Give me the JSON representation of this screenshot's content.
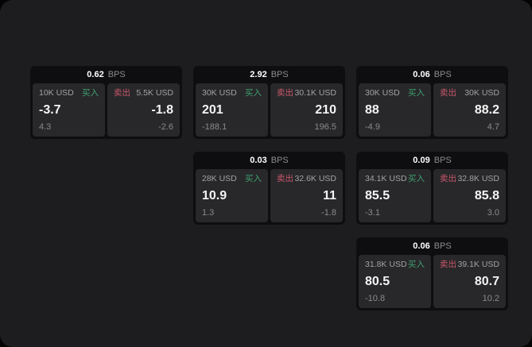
{
  "labels": {
    "bps_unit": "BPS",
    "buy": "买入",
    "sell": "卖出"
  },
  "colors": {
    "buy_green": "#3EA06F",
    "sell_red": "#C9566A",
    "page_bg": "#1D1D1F",
    "card_bg": "#0E0E10",
    "panel_bg": "#28282A"
  },
  "cards": [
    {
      "row": 1,
      "col": 1,
      "bps_value": "0.62",
      "buy": {
        "notional": "10K USD",
        "value": "-3.7",
        "secondary": "4.3"
      },
      "sell": {
        "notional": "5.5K USD",
        "value": "-1.8",
        "secondary": "-2.6"
      }
    },
    {
      "row": 1,
      "col": 2,
      "bps_value": "2.92",
      "buy": {
        "notional": "30K USD",
        "value": "201",
        "secondary": "-188.1"
      },
      "sell": {
        "notional": "30.1K USD",
        "value": "210",
        "secondary": "196.5"
      }
    },
    {
      "row": 1,
      "col": 3,
      "bps_value": "0.06",
      "buy": {
        "notional": "30K USD",
        "value": "88",
        "secondary": "-4.9"
      },
      "sell": {
        "notional": "30K USD",
        "value": "88.2",
        "secondary": "4.7"
      }
    },
    {
      "row": 2,
      "col": 2,
      "bps_value": "0.03",
      "buy": {
        "notional": "28K USD",
        "value": "10.9",
        "secondary": "1.3"
      },
      "sell": {
        "notional": "32.6K USD",
        "value": "11",
        "secondary": "-1.8"
      }
    },
    {
      "row": 2,
      "col": 3,
      "bps_value": "0.09",
      "buy": {
        "notional": "34.1K USD",
        "value": "85.5",
        "secondary": "-3.1"
      },
      "sell": {
        "notional": "32.8K USD",
        "value": "85.8",
        "secondary": "3.0"
      }
    },
    {
      "row": 3,
      "col": 3,
      "bps_value": "0.06",
      "buy": {
        "notional": "31.8K USD",
        "value": "80.5",
        "secondary": "-10.8"
      },
      "sell": {
        "notional": "39.1K USD",
        "value": "80.7",
        "secondary": "10.2"
      }
    }
  ]
}
